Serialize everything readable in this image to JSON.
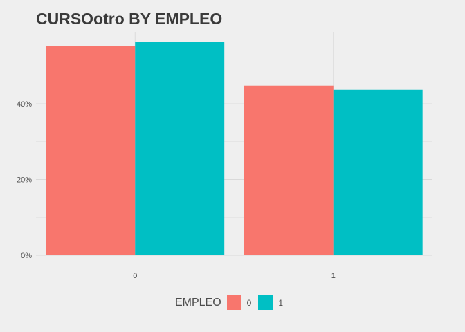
{
  "chart_data": {
    "type": "bar",
    "title": "CURSOotro BY EMPLEO",
    "xlabel": "",
    "ylabel": "",
    "categories": [
      "0",
      "1"
    ],
    "series": [
      {
        "name": "0",
        "color": "#F8766D",
        "values": [
          0.552,
          0.448
        ]
      },
      {
        "name": "1",
        "color": "#00BFC4",
        "values": [
          0.563,
          0.437
        ]
      }
    ],
    "y_ticks": [
      0,
      0.2,
      0.4
    ],
    "y_tick_labels": [
      "0%",
      "20%",
      "40%"
    ],
    "ylim": [
      0,
      0.59
    ],
    "grid": true,
    "legend": {
      "title": "EMPLEO",
      "placement": "bottom",
      "labels": [
        "0",
        "1"
      ]
    },
    "colors": {
      "background": "#efefef",
      "grid": "#d9d9d9",
      "title": "#3a3a3a",
      "axis_text": "#4d4d4d"
    }
  }
}
